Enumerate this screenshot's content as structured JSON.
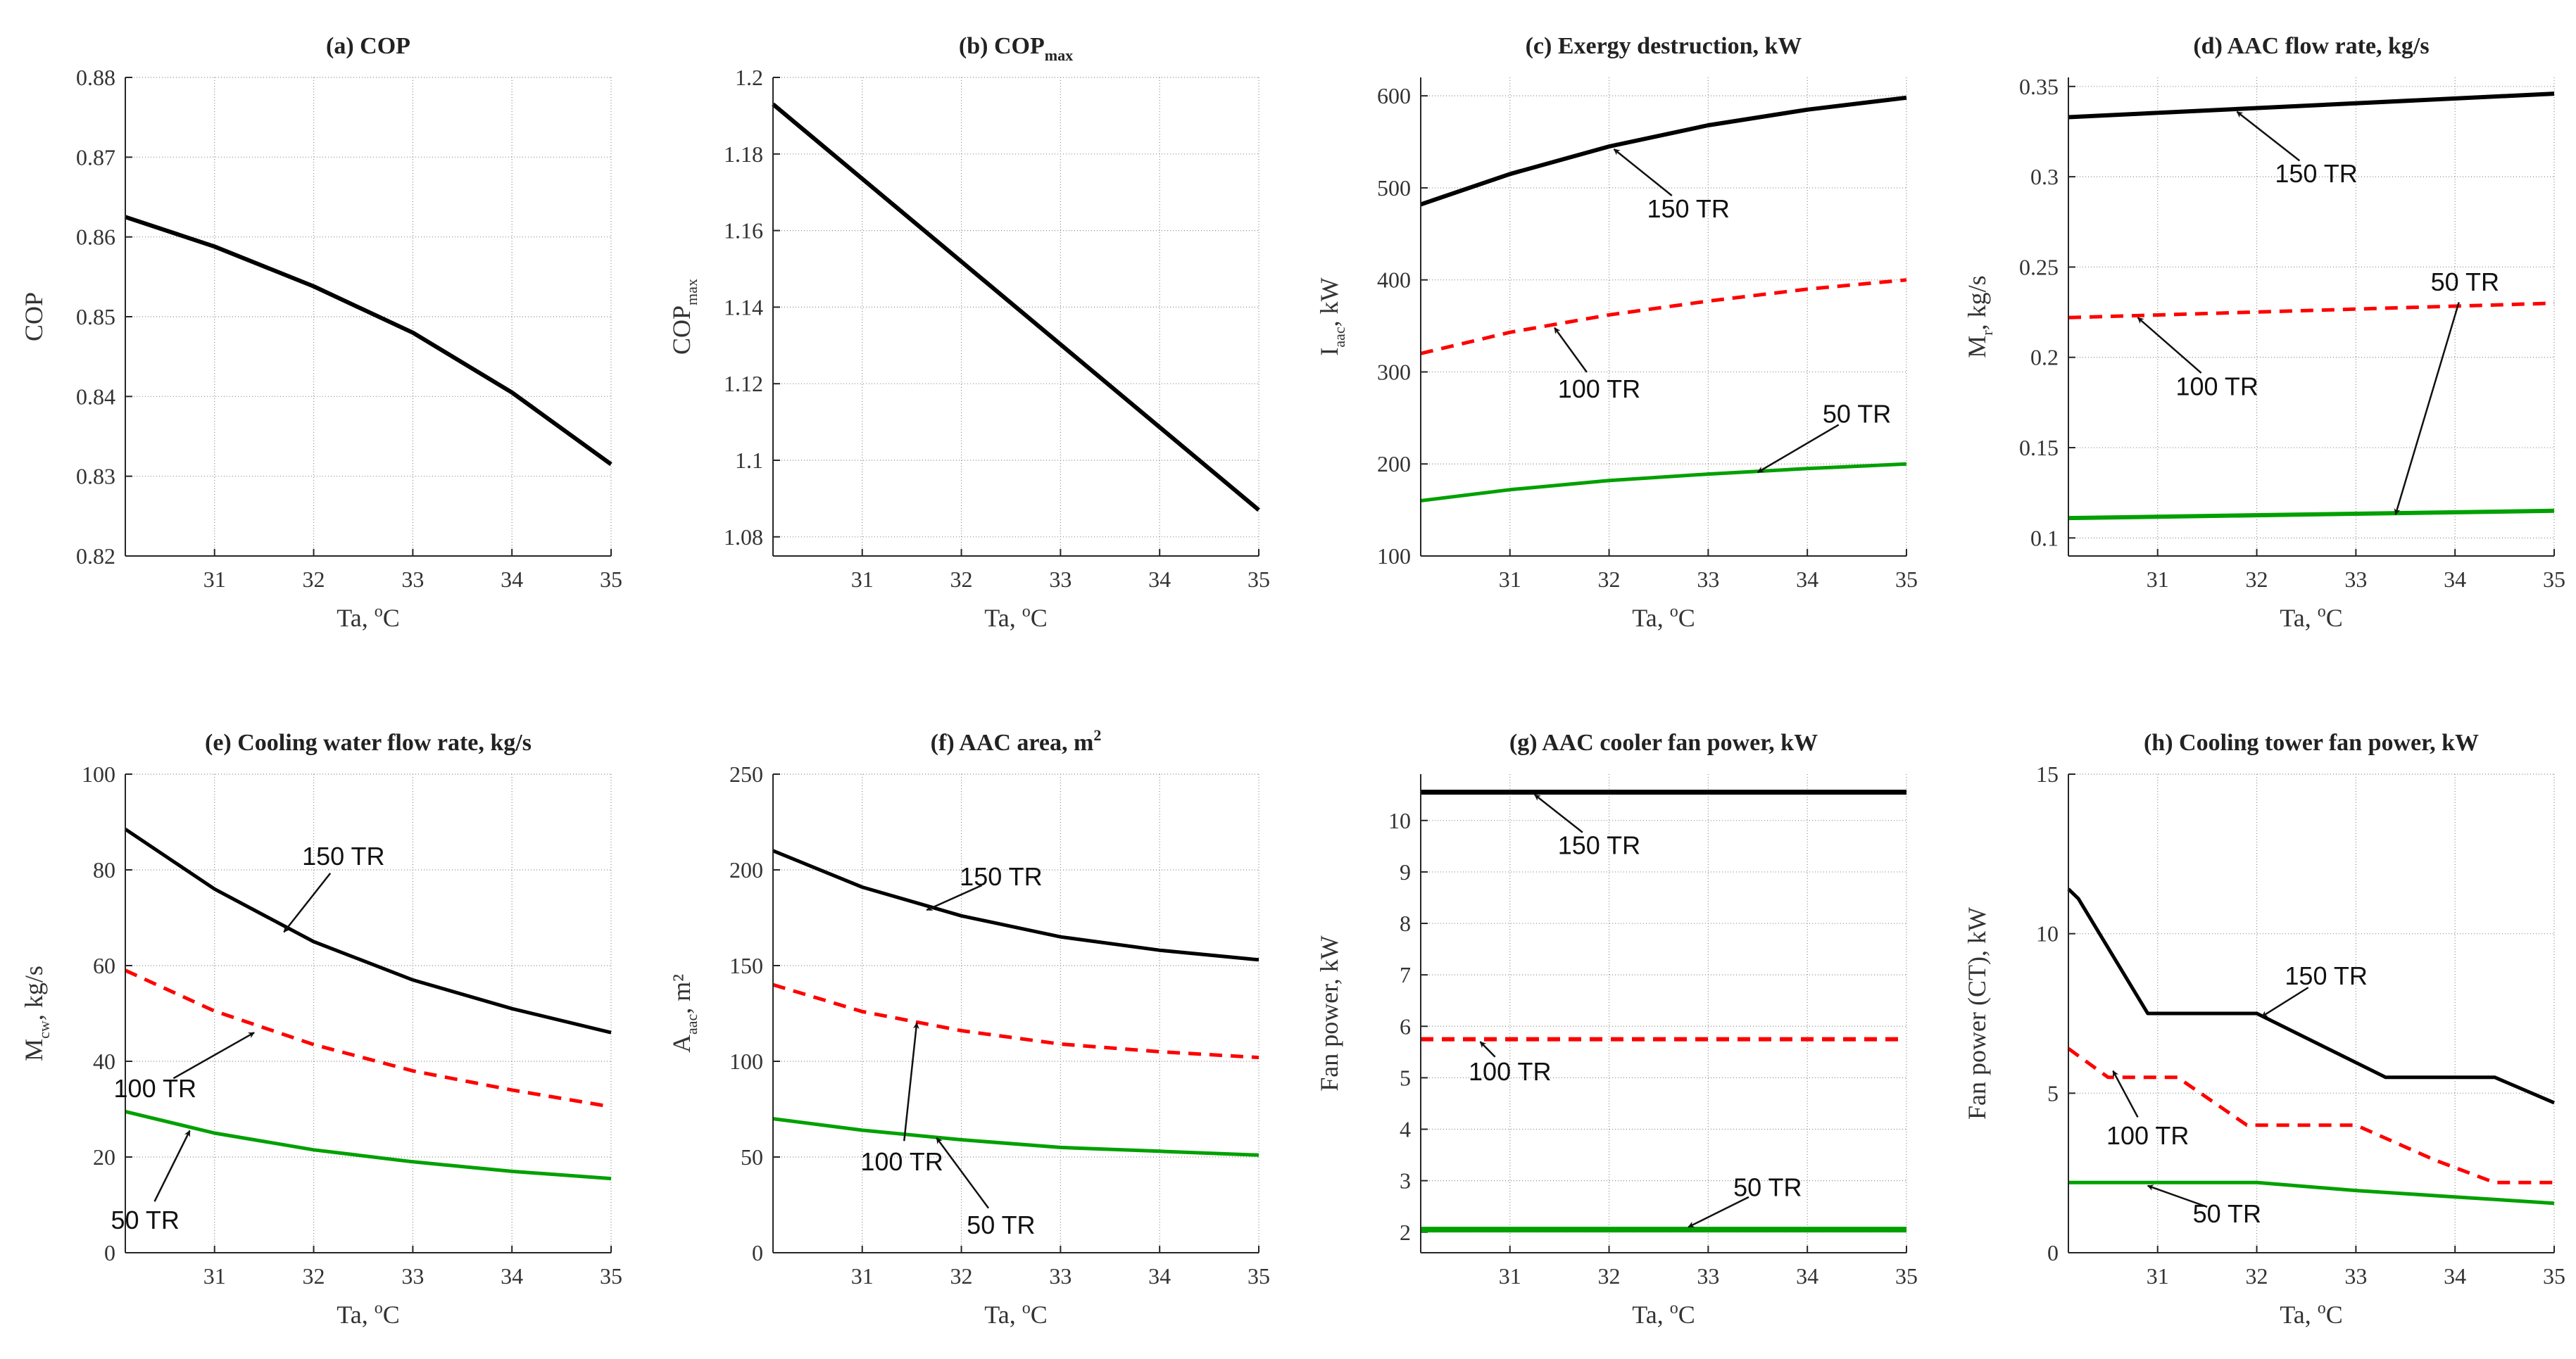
{
  "figure_title": "",
  "chart_data": [
    {
      "id": "a",
      "type": "line",
      "title": "(a) COP",
      "title_main": "(a) COP",
      "title_sub": "",
      "title_sup": "",
      "xlabel": "Ta, °C",
      "xlabel_main": "Ta, ",
      "xlabel_sup": "o",
      "xlabel_end": "C",
      "ylabel": "COP",
      "ylabel_main": "COP",
      "ylabel_sub": "",
      "ylabel_sup": "",
      "ylabel_end": "",
      "xlim": [
        30.1,
        35
      ],
      "ylim": [
        0.82,
        0.88
      ],
      "xticks": [
        "31",
        "32",
        "33",
        "34",
        "35"
      ],
      "yticks": [
        "0.82",
        "0.83",
        "0.84",
        "0.85",
        "0.86",
        "0.87",
        "0.88"
      ],
      "grid": true,
      "series": [
        {
          "name": "COP",
          "color": "#000000",
          "dash": false,
          "width": 6,
          "x": [
            30.1,
            31,
            32,
            33,
            34,
            35
          ],
          "y": [
            0.8625,
            0.8588,
            0.8538,
            0.848,
            0.8405,
            0.8315
          ]
        }
      ],
      "annotations": []
    },
    {
      "id": "b",
      "type": "line",
      "title": "(b) COPmax",
      "title_main": "(b) COP",
      "title_sub": "max",
      "title_sup": "",
      "xlabel": "Ta, °C",
      "xlabel_main": "Ta, ",
      "xlabel_sup": "o",
      "xlabel_end": "C",
      "ylabel": "COPmax",
      "ylabel_main": "COP",
      "ylabel_sub": "max",
      "ylabel_sup": "",
      "ylabel_end": "",
      "xlim": [
        30.1,
        35
      ],
      "ylim": [
        1.075,
        1.2
      ],
      "xticks": [
        "31",
        "32",
        "33",
        "34",
        "35"
      ],
      "yticks": [
        "1.08",
        "1.1",
        "1.12",
        "1.14",
        "1.16",
        "1.18",
        "1.2"
      ],
      "grid": true,
      "series": [
        {
          "name": "COPmax",
          "color": "#000000",
          "dash": false,
          "width": 6,
          "x": [
            30.1,
            35
          ],
          "y": [
            1.193,
            1.087
          ]
        }
      ],
      "annotations": []
    },
    {
      "id": "c",
      "type": "line",
      "title": "(c) Exergy destruction, kW",
      "title_main": "(c) Exergy destruction, kW",
      "title_sub": "",
      "title_sup": "",
      "xlabel": "Ta, °C",
      "xlabel_main": "Ta, ",
      "xlabel_sup": "o",
      "xlabel_end": "C",
      "ylabel": "Iaac, kW",
      "ylabel_main": "I",
      "ylabel_sub": "aac",
      "ylabel_sup": "",
      "ylabel_end": ", kW",
      "xlim": [
        30.1,
        35
      ],
      "ylim": [
        100,
        620
      ],
      "xticks": [
        "31",
        "32",
        "33",
        "34",
        "35"
      ],
      "yticks": [
        "100",
        "200",
        "300",
        "400",
        "500",
        "600"
      ],
      "grid": true,
      "series": [
        {
          "name": "150 TR",
          "color": "#000000",
          "dash": false,
          "width": 6,
          "x": [
            30.1,
            31,
            32,
            33,
            34,
            35
          ],
          "y": [
            482,
            515,
            545,
            568,
            585,
            598
          ]
        },
        {
          "name": "100 TR",
          "color": "#ff0000",
          "dash": true,
          "width": 5,
          "x": [
            30.1,
            31,
            32,
            33,
            34,
            35
          ],
          "y": [
            320,
            343,
            362,
            377,
            390,
            400
          ]
        },
        {
          "name": "50 TR",
          "color": "#00a000",
          "dash": false,
          "width": 5,
          "x": [
            30.1,
            31,
            32,
            33,
            34,
            35
          ],
          "y": [
            160,
            172,
            182,
            189,
            195,
            200
          ]
        }
      ],
      "annotations": [
        {
          "text": "150 TR",
          "tx": 32.8,
          "ty": 468,
          "ax": 32.05,
          "ay": 542
        },
        {
          "text": "100 TR",
          "tx": 31.9,
          "ty": 272,
          "ax": 31.45,
          "ay": 348
        },
        {
          "text": "50 TR",
          "tx": 34.5,
          "ty": 245,
          "ax": 33.5,
          "ay": 191
        }
      ]
    },
    {
      "id": "d",
      "type": "line",
      "title": "(d) AAC flow rate, kg/s",
      "title_main": "(d) AAC flow rate, kg/s",
      "title_sub": "",
      "title_sup": "",
      "xlabel": "Ta, °C",
      "xlabel_main": "Ta, ",
      "xlabel_sup": "o",
      "xlabel_end": "C",
      "ylabel": "Mr, kg/s",
      "ylabel_main": "M",
      "ylabel_sub": "r",
      "ylabel_sup": "",
      "ylabel_end": ", kg/s",
      "xlim": [
        30.1,
        35
      ],
      "ylim": [
        0.09,
        0.355
      ],
      "xticks": [
        "31",
        "32",
        "33",
        "34",
        "35"
      ],
      "yticks": [
        "0.1",
        "0.15",
        "0.2",
        "0.25",
        "0.3",
        "0.35"
      ],
      "grid": true,
      "series": [
        {
          "name": "150 TR",
          "color": "#000000",
          "dash": false,
          "width": 6,
          "x": [
            30.1,
            35
          ],
          "y": [
            0.333,
            0.346
          ]
        },
        {
          "name": "100 TR",
          "color": "#ff0000",
          "dash": true,
          "width": 5,
          "x": [
            30.1,
            35
          ],
          "y": [
            0.222,
            0.23
          ]
        },
        {
          "name": "50 TR",
          "color": "#00a000",
          "dash": false,
          "width": 6,
          "x": [
            30.1,
            35
          ],
          "y": [
            0.111,
            0.115
          ]
        }
      ],
      "annotations": [
        {
          "text": "150 TR",
          "tx": 32.6,
          "ty": 0.297,
          "ax": 31.8,
          "ay": 0.336
        },
        {
          "text": "100 TR",
          "tx": 31.6,
          "ty": 0.179,
          "ax": 30.8,
          "ay": 0.222
        },
        {
          "text": "50 TR",
          "tx": 34.1,
          "ty": 0.237,
          "ax": 33.4,
          "ay": 0.113
        }
      ]
    },
    {
      "id": "e",
      "type": "line",
      "title": "(e) Cooling water flow rate, kg/s",
      "title_main": "(e) Cooling water flow rate, kg/s",
      "title_sub": "",
      "title_sup": "",
      "xlabel": "Ta, °C",
      "xlabel_main": "Ta, ",
      "xlabel_sup": "o",
      "xlabel_end": "C",
      "ylabel": "Mcw, kg/s",
      "ylabel_main": "M",
      "ylabel_sub": "cw",
      "ylabel_sup": "",
      "ylabel_end": ", kg/s",
      "xlim": [
        30.1,
        35
      ],
      "ylim": [
        0,
        100
      ],
      "xticks": [
        "31",
        "32",
        "33",
        "34",
        "35"
      ],
      "yticks": [
        "0",
        "20",
        "40",
        "60",
        "80",
        "100"
      ],
      "grid": true,
      "series": [
        {
          "name": "150 TR",
          "color": "#000000",
          "dash": false,
          "width": 5,
          "x": [
            30.1,
            31,
            32,
            33,
            34,
            35
          ],
          "y": [
            88.5,
            76,
            65,
            57,
            51,
            46
          ]
        },
        {
          "name": "100 TR",
          "color": "#ff0000",
          "dash": true,
          "width": 5,
          "x": [
            30.1,
            31,
            32,
            33,
            34,
            35
          ],
          "y": [
            59,
            50.5,
            43.5,
            38,
            34,
            30.5
          ]
        },
        {
          "name": "50 TR",
          "color": "#00a000",
          "dash": false,
          "width": 5,
          "x": [
            30.1,
            31,
            32,
            33,
            34,
            35
          ],
          "y": [
            29.5,
            25,
            21.5,
            19,
            17,
            15.5
          ]
        }
      ],
      "annotations": [
        {
          "text": "150 TR",
          "tx": 32.3,
          "ty": 81,
          "ax": 31.7,
          "ay": 67
        },
        {
          "text": "100 TR",
          "tx": 30.4,
          "ty": 32.5,
          "ax": 31.4,
          "ay": 46
        },
        {
          "text": "50 TR",
          "tx": 30.3,
          "ty": 5,
          "ax": 30.75,
          "ay": 25.5
        }
      ]
    },
    {
      "id": "f",
      "type": "line",
      "title": "(f) AAC area, m²",
      "title_main": "(f) AAC area, m",
      "title_sub": "",
      "title_sup": "2",
      "xlabel": "Ta, °C",
      "xlabel_main": "Ta, ",
      "xlabel_sup": "o",
      "xlabel_end": "C",
      "ylabel": "Aaac, m²",
      "ylabel_main": "A",
      "ylabel_sub": "aac",
      "ylabel_sup": "",
      "ylabel_end": ", m²",
      "xlim": [
        30.1,
        35
      ],
      "ylim": [
        0,
        250
      ],
      "xticks": [
        "31",
        "32",
        "33",
        "34",
        "35"
      ],
      "yticks": [
        "0",
        "50",
        "100",
        "150",
        "200",
        "250"
      ],
      "grid": true,
      "series": [
        {
          "name": "150 TR",
          "color": "#000000",
          "dash": false,
          "width": 5,
          "x": [
            30.1,
            31,
            32,
            33,
            34,
            35
          ],
          "y": [
            210,
            191,
            176,
            165,
            158,
            153
          ]
        },
        {
          "name": "100 TR",
          "color": "#ff0000",
          "dash": true,
          "width": 5,
          "x": [
            30.1,
            31,
            32,
            33,
            34,
            35
          ],
          "y": [
            140,
            126,
            116,
            109,
            105,
            102
          ]
        },
        {
          "name": "50 TR",
          "color": "#00a000",
          "dash": false,
          "width": 5,
          "x": [
            30.1,
            31,
            32,
            33,
            34,
            35
          ],
          "y": [
            70,
            64,
            59,
            55,
            53,
            51
          ]
        }
      ],
      "annotations": [
        {
          "text": "150 TR",
          "tx": 32.4,
          "ty": 192,
          "ax": 31.65,
          "ay": 179
        },
        {
          "text": "100 TR",
          "tx": 31.4,
          "ty": 43,
          "ax": 31.55,
          "ay": 120
        },
        {
          "text": "50 TR",
          "tx": 32.4,
          "ty": 10,
          "ax": 31.75,
          "ay": 60
        }
      ]
    },
    {
      "id": "g",
      "type": "line",
      "title": "(g) AAC cooler fan power, kW",
      "title_main": "(g) AAC cooler fan power, kW",
      "title_sub": "",
      "title_sup": "",
      "xlabel": "Ta, °C",
      "xlabel_main": "Ta, ",
      "xlabel_sup": "o",
      "xlabel_end": "C",
      "ylabel": "Fan power, kW",
      "ylabel_main": "Fan power, kW",
      "ylabel_sub": "",
      "ylabel_sup": "",
      "ylabel_end": "",
      "xlim": [
        30.1,
        35
      ],
      "ylim": [
        1.6,
        10.9
      ],
      "xticks": [
        "31",
        "32",
        "33",
        "34",
        "35"
      ],
      "yticks": [
        "2",
        "3",
        "4",
        "5",
        "6",
        "7",
        "8",
        "9",
        "10"
      ],
      "grid": true,
      "series": [
        {
          "name": "150 TR",
          "color": "#000000",
          "dash": false,
          "width": 7,
          "x": [
            30.1,
            35
          ],
          "y": [
            10.55,
            10.55
          ]
        },
        {
          "name": "100 TR",
          "color": "#ff0000",
          "dash": true,
          "width": 6,
          "x": [
            30.1,
            35
          ],
          "y": [
            5.75,
            5.75
          ]
        },
        {
          "name": "50 TR",
          "color": "#00a000",
          "dash": false,
          "width": 8,
          "x": [
            30.1,
            35
          ],
          "y": [
            2.05,
            2.05
          ]
        }
      ],
      "annotations": [
        {
          "text": "150 TR",
          "tx": 31.9,
          "ty": 9.35,
          "ax": 31.25,
          "ay": 10.5
        },
        {
          "text": "100 TR",
          "tx": 31.0,
          "ty": 4.95,
          "ax": 30.7,
          "ay": 5.7
        },
        {
          "text": "50 TR",
          "tx": 33.6,
          "ty": 2.7,
          "ax": 32.8,
          "ay": 2.1
        }
      ]
    },
    {
      "id": "h",
      "type": "line",
      "title": "(h) Cooling tower fan power, kW",
      "title_main": "(h) Cooling tower fan power, kW",
      "title_sub": "",
      "title_sup": "",
      "xlabel": "Ta, °C",
      "xlabel_main": "Ta, ",
      "xlabel_sup": "o",
      "xlabel_end": "C",
      "ylabel": "Fan power (CT), kW",
      "ylabel_main": "Fan power (CT), kW",
      "ylabel_sub": "",
      "ylabel_sup": "",
      "ylabel_end": "",
      "xlim": [
        30.1,
        35
      ],
      "ylim": [
        0,
        15
      ],
      "xticks": [
        "31",
        "32",
        "33",
        "34",
        "35"
      ],
      "yticks": [
        "0",
        "5",
        "10",
        "15"
      ],
      "grid": true,
      "series": [
        {
          "name": "150 TR",
          "color": "#000000",
          "dash": false,
          "width": 5,
          "x": [
            30.1,
            30.2,
            30.9,
            32.0,
            33.3,
            34.4,
            35.0
          ],
          "y": [
            11.4,
            11.1,
            7.5,
            7.5,
            5.5,
            5.5,
            4.7
          ]
        },
        {
          "name": "100 TR",
          "color": "#ff0000",
          "dash": true,
          "width": 5,
          "x": [
            30.1,
            30.5,
            31.2,
            31.9,
            33.0,
            33.8,
            34.4,
            35.0
          ],
          "y": [
            6.4,
            5.5,
            5.5,
            4.0,
            4.0,
            2.9,
            2.2,
            2.2
          ]
        },
        {
          "name": "50 TR",
          "color": "#00a000",
          "dash": false,
          "width": 5,
          "x": [
            30.1,
            32.0,
            33.0,
            34.0,
            35.0
          ],
          "y": [
            2.2,
            2.2,
            1.95,
            1.75,
            1.55
          ]
        }
      ],
      "annotations": [
        {
          "text": "150 TR",
          "tx": 32.7,
          "ty": 8.4,
          "ax": 32.05,
          "ay": 7.4
        },
        {
          "text": "100 TR",
          "tx": 30.9,
          "ty": 3.4,
          "ax": 30.55,
          "ay": 5.7
        },
        {
          "text": "50 TR",
          "tx": 31.7,
          "ty": 0.95,
          "ax": 30.9,
          "ay": 2.1
        }
      ]
    }
  ]
}
